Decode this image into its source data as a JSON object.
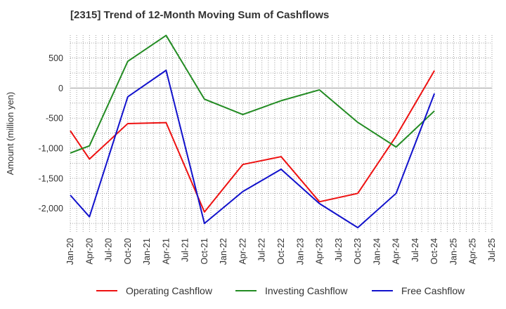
{
  "chart_data": {
    "type": "line",
    "title": "[2315]  Trend of 12-Month Moving Sum of Cashflows",
    "ylabel": "Amount (million yen)",
    "xlabel": "",
    "x_tick_labels": [
      "Jan-20",
      "Apr-20",
      "Jul-20",
      "Oct-20",
      "Jan-21",
      "Apr-21",
      "Jul-21",
      "Oct-21",
      "Jan-22",
      "Apr-22",
      "Jul-22",
      "Oct-22",
      "Jan-23",
      "Apr-23",
      "Jul-23",
      "Oct-23",
      "Jan-24",
      "Apr-24",
      "Jul-24",
      "Oct-24",
      "Jan-25",
      "Apr-25",
      "Jul-25"
    ],
    "x_dates": [
      "Jan-20",
      "Apr-20",
      "Oct-20",
      "Apr-21",
      "Oct-21",
      "Apr-22",
      "Oct-22",
      "Apr-23",
      "Oct-23",
      "Apr-24",
      "Oct-24"
    ],
    "y_ticks": [
      500,
      0,
      -500,
      -1000,
      -1500,
      -2000
    ],
    "y_tick_labels": [
      "500",
      "0",
      "-500",
      "-1,000",
      "-1,500",
      "-2,000"
    ],
    "ylim": [
      -2400,
      880
    ],
    "grid": true,
    "legend_position": "bottom",
    "series": [
      {
        "name": "Operating Cashflow",
        "color": "#ee1111",
        "values": [
          -710,
          -1180,
          -590,
          -575,
          -2060,
          -1270,
          -1140,
          -1890,
          -1750,
          -800,
          290
        ]
      },
      {
        "name": "Investing Cashflow",
        "color": "#228b22",
        "values": [
          -1080,
          -960,
          445,
          875,
          -185,
          -440,
          -210,
          -30,
          -570,
          -980,
          -380
        ]
      },
      {
        "name": "Free Cashflow",
        "color": "#1111cc",
        "values": [
          -1780,
          -2140,
          -145,
          295,
          -2250,
          -1720,
          -1350,
          -1920,
          -2320,
          -1750,
          -90
        ]
      }
    ]
  }
}
